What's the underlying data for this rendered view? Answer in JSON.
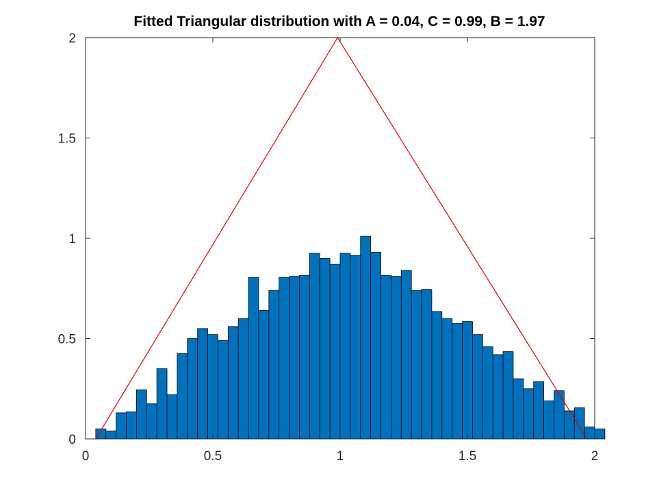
{
  "chart_data": {
    "type": "bar",
    "title": "Fitted Triangular distribution with A = 0.04, C = 0.99, B = 1.97",
    "xlabel": "",
    "ylabel": "",
    "xlim": [
      0,
      2
    ],
    "ylim": [
      0,
      2
    ],
    "x_ticks": [
      0,
      0.5,
      1,
      1.5,
      2
    ],
    "x_tick_labels": [
      "0",
      "0.5",
      "1",
      "1.5",
      "2"
    ],
    "y_ticks": [
      0,
      0.5,
      1,
      1.5,
      2
    ],
    "y_tick_labels": [
      "0",
      "0.5",
      "1",
      "1.5",
      "2"
    ],
    "grid": false,
    "histogram": {
      "bin_start": 0.04,
      "bin_width": 0.04,
      "values": [
        0.05,
        0.04,
        0.13,
        0.135,
        0.245,
        0.175,
        0.35,
        0.22,
        0.425,
        0.5,
        0.55,
        0.52,
        0.49,
        0.56,
        0.6,
        0.805,
        0.64,
        0.74,
        0.805,
        0.81,
        0.815,
        0.925,
        0.9,
        0.87,
        0.925,
        0.915,
        1.01,
        0.93,
        0.815,
        0.81,
        0.84,
        0.74,
        0.745,
        0.635,
        0.6,
        0.575,
        0.585,
        0.52,
        0.46,
        0.42,
        0.435,
        0.3,
        0.25,
        0.285,
        0.19,
        0.24,
        0.14,
        0.155,
        0.06,
        0.05
      ],
      "color": "#0072bd"
    },
    "fitted_line": {
      "type": "line",
      "color": "#d90000",
      "x": [
        0.04,
        0.99,
        1.97
      ],
      "y": [
        0,
        2,
        0
      ]
    }
  }
}
